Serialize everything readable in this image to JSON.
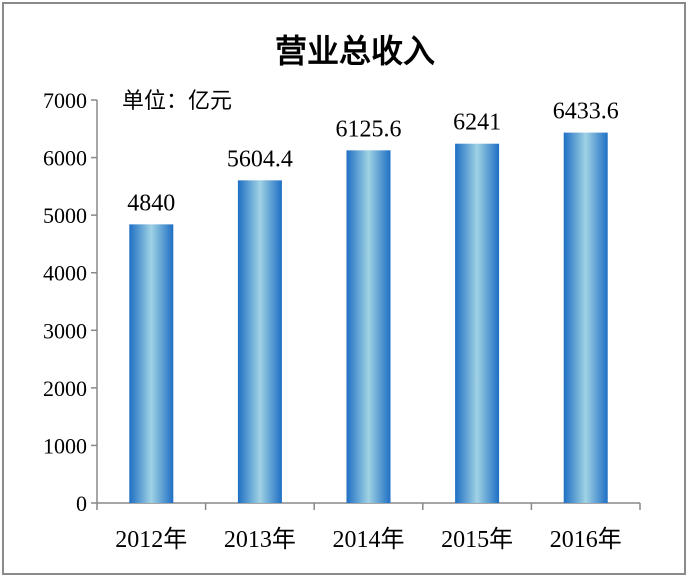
{
  "chart_data": {
    "type": "bar",
    "title": "营业总收入",
    "unit_note": "单位：亿元",
    "categories": [
      "2012年",
      "2013年",
      "2014年",
      "2015年",
      "2016年"
    ],
    "values": [
      4840,
      5604.4,
      6125.6,
      6241,
      6433.6
    ],
    "data_labels": [
      "4840",
      "5604.4",
      "6125.6",
      "6241",
      "6433.6"
    ],
    "ylim": [
      0,
      7000
    ],
    "yticks": [
      "0",
      "1000",
      "2000",
      "3000",
      "4000",
      "5000",
      "6000",
      "7000"
    ],
    "grid": false,
    "legend": "none",
    "colors": {
      "bar_edge": "#1f6fc4",
      "bar_center": "#9fd2e4",
      "axis": "#888888"
    }
  }
}
